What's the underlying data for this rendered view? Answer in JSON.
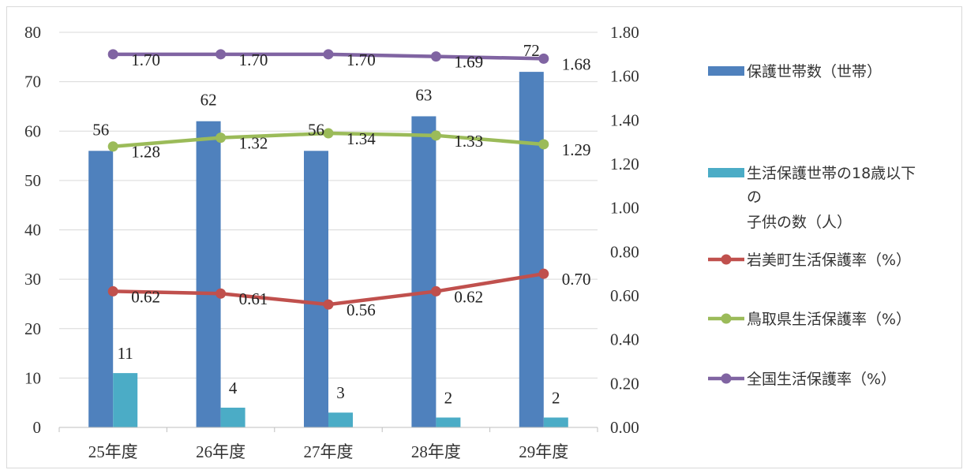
{
  "chart_data": {
    "type": "bar",
    "categories": [
      "25年度",
      "26年度",
      "27年度",
      "28年度",
      "29年度"
    ],
    "y_left": {
      "ticks": [
        "0",
        "10",
        "20",
        "30",
        "40",
        "50",
        "60",
        "70",
        "80"
      ],
      "range": [
        0,
        80
      ]
    },
    "y_right": {
      "ticks": [
        "0.00",
        "0.20",
        "0.40",
        "0.60",
        "0.80",
        "1.00",
        "1.20",
        "1.40",
        "1.60",
        "1.80"
      ],
      "range": [
        0,
        1.8
      ]
    },
    "grid": true,
    "legend_position": "right",
    "bar_series": [
      {
        "name": "保護世帯数（世帯）",
        "values": [
          56,
          62,
          56,
          63,
          72
        ],
        "labels": [
          "56",
          "62",
          "56",
          "63",
          "72"
        ],
        "color": "#4F81BD"
      },
      {
        "name": "生活保護世帯の18歳以下の子供の数（人）",
        "legend_lines": [
          "生活保護世帯の18歳以下",
          "の",
          "子供の数（人）"
        ],
        "values": [
          11,
          4,
          3,
          2,
          2
        ],
        "labels": [
          "11",
          "4",
          "3",
          "2",
          "2"
        ],
        "color": "#4BACC6"
      }
    ],
    "line_series": [
      {
        "name": "岩美町生活保護率（%）",
        "values": [
          0.62,
          0.61,
          0.56,
          0.62,
          0.7
        ],
        "labels": [
          "0.62",
          "0.61",
          "0.56",
          "0.62",
          "0.70"
        ],
        "color": "#C0504D"
      },
      {
        "name": "鳥取県生活保護率（%）",
        "values": [
          1.28,
          1.32,
          1.34,
          1.33,
          1.29
        ],
        "labels": [
          "1.28",
          "1.32",
          "1.34",
          "1.33",
          "1.29"
        ],
        "color": "#9BBB59"
      },
      {
        "name": "全国生活保護率（%）",
        "values": [
          1.7,
          1.7,
          1.7,
          1.69,
          1.68
        ],
        "labels": [
          "1.70",
          "1.70",
          "1.70",
          "1.69",
          "1.68"
        ],
        "color": "#8064A2"
      }
    ]
  }
}
